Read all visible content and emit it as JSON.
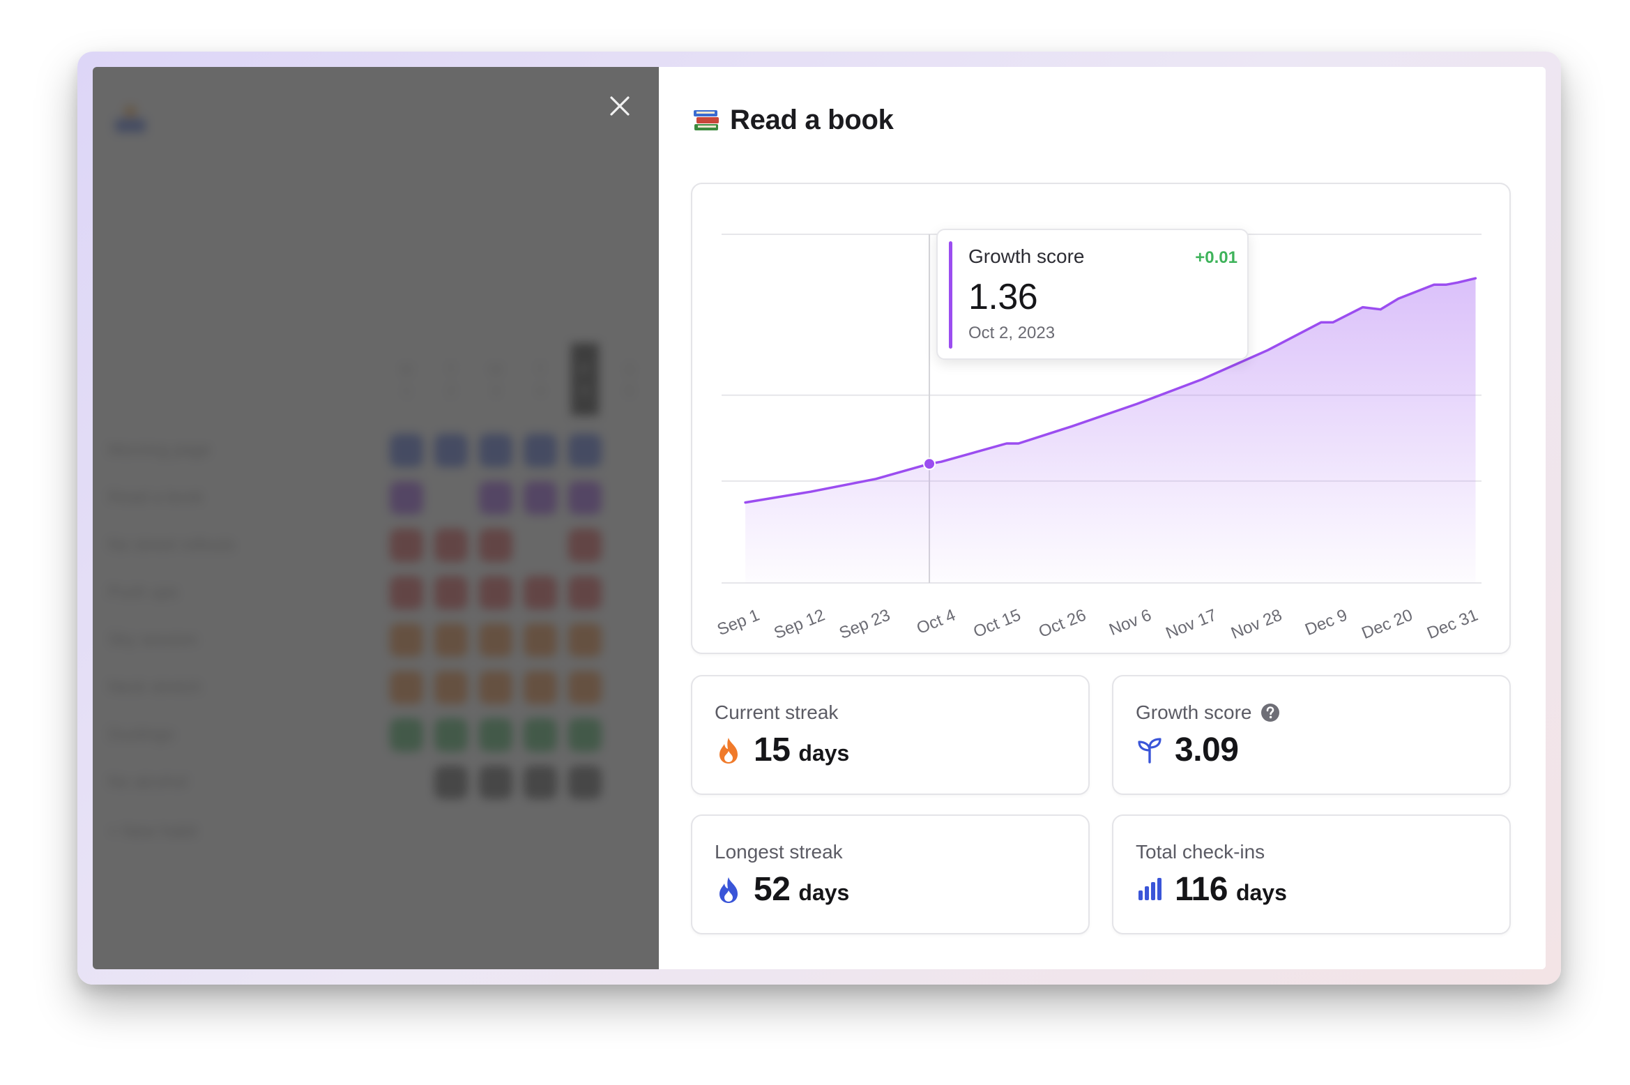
{
  "habit": {
    "title": "Read a book",
    "emoji_icon": "books-icon"
  },
  "tooltip": {
    "label": "Growth score",
    "delta": "+0.01",
    "value": "1.36",
    "date": "Oct 2, 2023"
  },
  "chart_data": {
    "type": "area",
    "title": "",
    "xlabel": "",
    "ylabel": "",
    "x_tick_labels": [
      "Sep 1",
      "Sep 12",
      "Sep 23",
      "Oct 4",
      "Oct 15",
      "Oct 26",
      "Nov 6",
      "Nov 17",
      "Nov 28",
      "Dec 9",
      "Dec 20",
      "Dec 31"
    ],
    "grid": true,
    "series": [
      {
        "x": [
          "Sep 1",
          "Sep 12",
          "Sep 23",
          "Oct 2",
          "Oct 4",
          "Oct 15",
          "Oct 17",
          "Oct 26",
          "Nov 6",
          "Nov 17",
          "Nov 28",
          "Dec 7",
          "Dec 9",
          "Dec 14",
          "Dec 17",
          "Dec 20",
          "Dec 26",
          "Dec 28",
          "Dec 30",
          "Jan 2"
        ],
        "values": [
          1.0,
          1.1,
          1.22,
          1.36,
          1.38,
          1.55,
          1.55,
          1.71,
          1.92,
          2.15,
          2.42,
          2.68,
          2.68,
          2.82,
          2.8,
          2.9,
          3.03,
          3.03,
          3.05,
          3.09
        ],
        "color": "#9b4df0"
      }
    ],
    "highlight": {
      "x": "Oct 2",
      "value": 1.36
    }
  },
  "stats": {
    "current_streak": {
      "label": "Current streak",
      "value": "15",
      "unit": "days",
      "icon": "fire-icon",
      "color": "#f07a2a"
    },
    "growth_score": {
      "label": "Growth score",
      "value": "3.09",
      "icon": "sprout-icon",
      "help_icon": "help-circle-icon",
      "color": "#3a55d8"
    },
    "longest_streak": {
      "label": "Longest streak",
      "value": "52",
      "unit": "days",
      "icon": "fire-icon",
      "color": "#3a55d8"
    },
    "total_checkins": {
      "label": "Total check-ins",
      "value": "116",
      "unit": "days",
      "icon": "bar-chart-icon",
      "color": "#3a55d8"
    }
  },
  "background_app": {
    "day_headers": [
      {
        "d": "M",
        "n": "1"
      },
      {
        "d": "T",
        "n": "2"
      },
      {
        "d": "W",
        "n": "3"
      },
      {
        "d": "T",
        "n": "4"
      },
      {
        "d": "F",
        "n": "5"
      },
      {
        "d": "S",
        "n": "6"
      }
    ],
    "habits": [
      {
        "label": "Morning page",
        "color": "#3b5bd6"
      },
      {
        "label": "Read a book",
        "color": "#8c3ce0"
      },
      {
        "label": "No street rollouts",
        "color": "#d93b3b"
      },
      {
        "label": "Push ups",
        "color": "#d93b3b"
      },
      {
        "label": "Sky session",
        "color": "#ea7a23"
      },
      {
        "label": "Neck stretch",
        "color": "#ea7a23"
      },
      {
        "label": "Duolingo",
        "color": "#2fa84f"
      },
      {
        "label": "No alcohol",
        "color": "#444"
      }
    ],
    "new_habit_label": "+ New habit"
  }
}
